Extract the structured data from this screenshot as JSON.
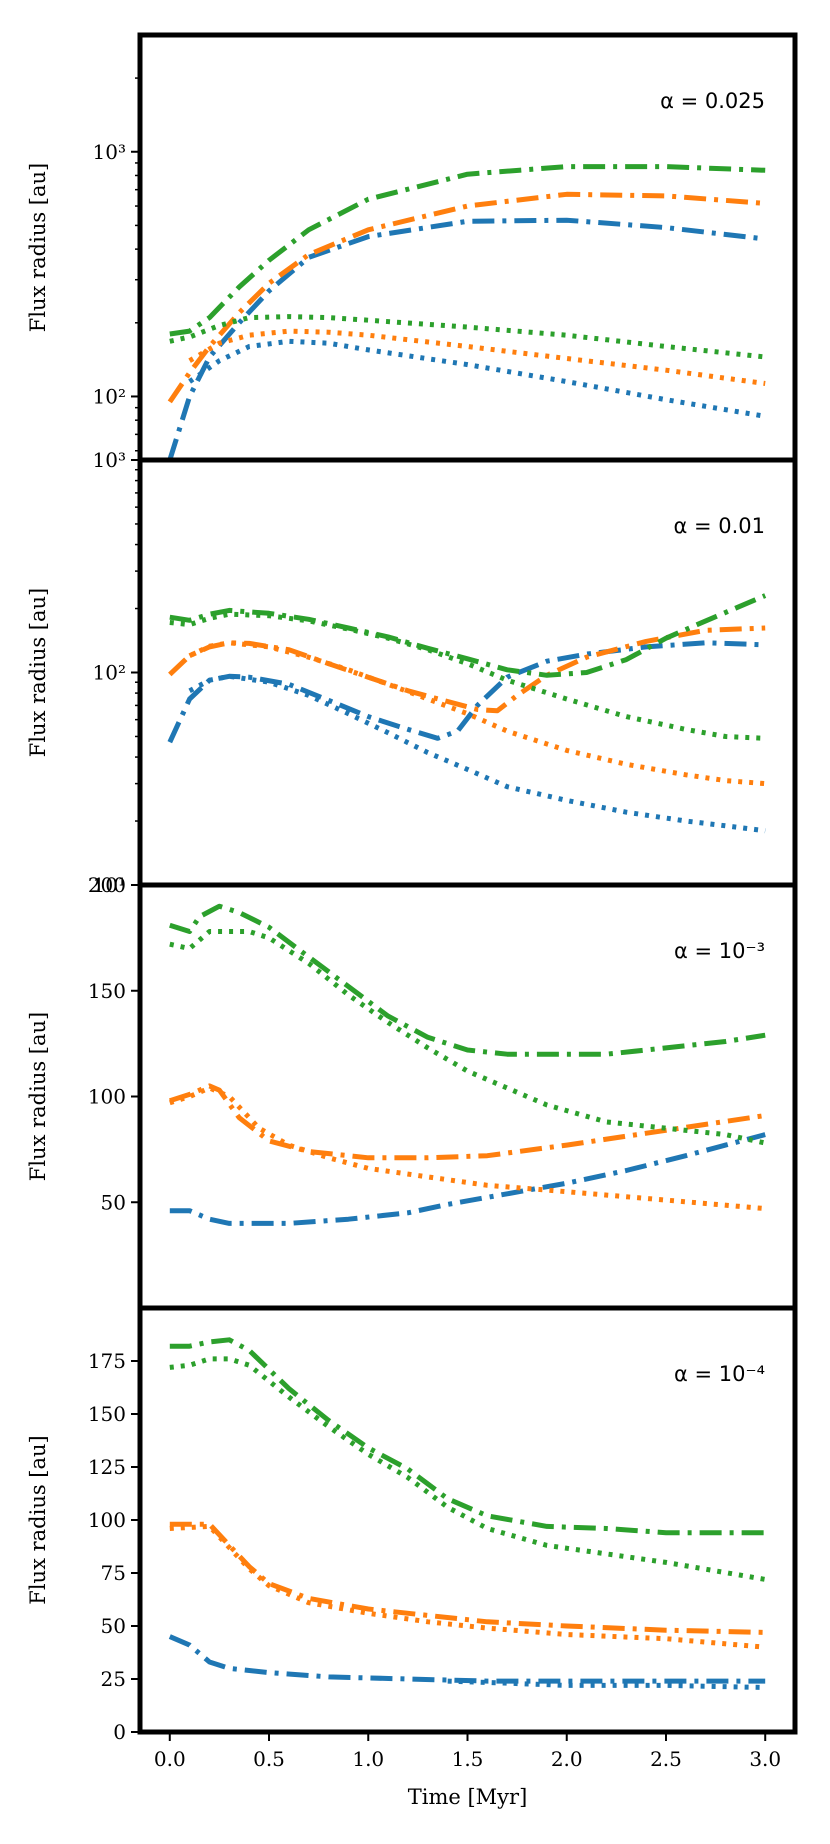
{
  "chart_data": [
    {
      "type": "line",
      "panel": "alpha_0.025",
      "annotation": "α = 0.025",
      "ylabel": "Flux radius [au]",
      "yscale": "log",
      "ylim": [
        55,
        3000
      ],
      "yticks": [
        {
          "v": 100,
          "label": "10²"
        },
        {
          "v": 1000,
          "label": "10³"
        }
      ],
      "series": [
        {
          "name": "blue-dashdot",
          "color": "#1f77b4",
          "style": "dashdot",
          "x": [
            0,
            0.1,
            0.2,
            0.35,
            0.5,
            0.7,
            1.0,
            1.5,
            2.0,
            2.5,
            3.0
          ],
          "values": [
            55,
            100,
            145,
            200,
            270,
            370,
            450,
            520,
            525,
            490,
            440
          ]
        },
        {
          "name": "blue-dotted",
          "color": "#1f77b4",
          "style": "dotted",
          "x": [
            0.1,
            0.25,
            0.4,
            0.6,
            0.8,
            1.0,
            1.5,
            2.0,
            2.5,
            3.0
          ],
          "values": [
            115,
            140,
            160,
            168,
            165,
            155,
            135,
            115,
            97,
            83
          ]
        },
        {
          "name": "orange-dashdot",
          "color": "#ff7f0e",
          "style": "dashdot",
          "x": [
            0,
            0.1,
            0.2,
            0.35,
            0.5,
            0.7,
            1.0,
            1.5,
            2.0,
            2.5,
            3.0
          ],
          "values": [
            95,
            125,
            160,
            220,
            290,
            380,
            480,
            600,
            670,
            660,
            615
          ]
        },
        {
          "name": "orange-dotted",
          "color": "#ff7f0e",
          "style": "dotted",
          "x": [
            0.1,
            0.25,
            0.4,
            0.6,
            0.8,
            1.0,
            1.5,
            2.0,
            2.5,
            3.0
          ],
          "values": [
            140,
            165,
            178,
            185,
            183,
            178,
            160,
            143,
            128,
            113
          ]
        },
        {
          "name": "green-dashdot",
          "color": "#2ca02c",
          "style": "dashdot",
          "x": [
            0,
            0.1,
            0.2,
            0.35,
            0.5,
            0.7,
            1.0,
            1.5,
            2.0,
            2.5,
            3.0
          ],
          "values": [
            180,
            185,
            210,
            280,
            360,
            480,
            640,
            810,
            870,
            870,
            840
          ]
        },
        {
          "name": "green-dotted",
          "color": "#2ca02c",
          "style": "dotted",
          "x": [
            0,
            0.1,
            0.25,
            0.4,
            0.6,
            0.8,
            1.0,
            1.5,
            2.0,
            2.5,
            3.0
          ],
          "values": [
            168,
            175,
            195,
            210,
            212,
            210,
            205,
            192,
            178,
            160,
            145
          ]
        }
      ]
    },
    {
      "type": "line",
      "panel": "alpha_0.01",
      "annotation": "α = 0.01",
      "ylabel": "Flux radius [au]",
      "yscale": "log",
      "ylim": [
        10,
        1000
      ],
      "yticks": [
        {
          "v": 10,
          "label": "10¹"
        },
        {
          "v": 100,
          "label": "10²"
        },
        {
          "v": 1000,
          "label": "10³"
        }
      ],
      "series": [
        {
          "name": "blue-dashdot",
          "color": "#1f77b4",
          "style": "dashdot",
          "x": [
            0,
            0.1,
            0.2,
            0.3,
            0.4,
            0.6,
            0.8,
            1.0,
            1.2,
            1.35,
            1.45,
            1.55,
            1.7,
            1.9,
            2.1,
            2.4,
            2.7,
            3.0
          ],
          "values": [
            47,
            75,
            92,
            96,
            95,
            88,
            74,
            62,
            54,
            49,
            53,
            70,
            95,
            113,
            122,
            132,
            138,
            135
          ]
        },
        {
          "name": "blue-dotted",
          "color": "#1f77b4",
          "style": "dotted",
          "x": [
            0.1,
            0.2,
            0.3,
            0.5,
            0.7,
            0.9,
            1.1,
            1.3,
            1.5,
            1.7,
            2.0,
            2.3,
            2.6,
            2.8,
            3.0
          ],
          "values": [
            82,
            92,
            96,
            90,
            78,
            64,
            52,
            42,
            35,
            29,
            25,
            22,
            20,
            19,
            18
          ]
        },
        {
          "name": "orange-dashdot",
          "color": "#ff7f0e",
          "style": "dashdot",
          "x": [
            0,
            0.1,
            0.2,
            0.3,
            0.4,
            0.6,
            0.8,
            1.0,
            1.2,
            1.4,
            1.55,
            1.65,
            1.75,
            1.9,
            2.1,
            2.4,
            2.7,
            3.0
          ],
          "values": [
            98,
            120,
            132,
            138,
            137,
            128,
            110,
            95,
            82,
            73,
            67,
            66,
            78,
            97,
            118,
            140,
            158,
            162
          ]
        },
        {
          "name": "orange-dotted",
          "color": "#ff7f0e",
          "style": "dotted",
          "x": [
            0.1,
            0.2,
            0.3,
            0.5,
            0.7,
            0.9,
            1.1,
            1.3,
            1.5,
            1.7,
            2.0,
            2.3,
            2.6,
            2.8,
            3.0
          ],
          "values": [
            120,
            133,
            138,
            132,
            118,
            103,
            88,
            75,
            64,
            53,
            43,
            37,
            33,
            31,
            30
          ]
        },
        {
          "name": "green-dashdot",
          "color": "#2ca02c",
          "style": "dashdot",
          "x": [
            0,
            0.1,
            0.2,
            0.3,
            0.5,
            0.7,
            0.9,
            1.1,
            1.3,
            1.5,
            1.7,
            1.9,
            2.1,
            2.3,
            2.5,
            2.7,
            3.0
          ],
          "values": [
            182,
            176,
            188,
            196,
            190,
            178,
            162,
            147,
            130,
            116,
            103,
            97,
            100,
            115,
            145,
            175,
            230
          ]
        },
        {
          "name": "green-dotted",
          "color": "#2ca02c",
          "style": "dotted",
          "x": [
            0,
            0.1,
            0.2,
            0.3,
            0.5,
            0.7,
            0.9,
            1.1,
            1.3,
            1.5,
            1.7,
            2.0,
            2.3,
            2.6,
            2.8,
            3.0
          ],
          "values": [
            172,
            168,
            180,
            188,
            185,
            175,
            160,
            145,
            128,
            110,
            92,
            75,
            62,
            54,
            50,
            49
          ]
        }
      ]
    },
    {
      "type": "line",
      "panel": "alpha_1e-3",
      "annotation": "α = 10⁻³",
      "ylabel": "Flux radius [au]",
      "yscale": "linear",
      "ylim": [
        0,
        200
      ],
      "yticks": [
        {
          "v": 50,
          "label": "50"
        },
        {
          "v": 100,
          "label": "100"
        },
        {
          "v": 150,
          "label": "150"
        },
        {
          "v": 200,
          "label": "200"
        }
      ],
      "series": [
        {
          "name": "blue-dashdot",
          "color": "#1f77b4",
          "style": "dashdot",
          "x": [
            0,
            0.1,
            0.2,
            0.3,
            0.6,
            0.9,
            1.2,
            1.4,
            1.7,
            2.0,
            2.3,
            2.6,
            2.8,
            3.0
          ],
          "values": [
            46,
            46,
            42,
            40,
            40,
            42,
            45,
            49,
            54,
            59,
            65,
            72,
            77,
            82
          ]
        },
        {
          "name": "orange-dashdot",
          "color": "#ff7f0e",
          "style": "dashdot",
          "x": [
            0,
            0.1,
            0.2,
            0.25,
            0.35,
            0.5,
            0.7,
            1.0,
            1.3,
            1.6,
            2.0,
            2.5,
            3.0
          ],
          "values": [
            98,
            101,
            105,
            103,
            90,
            79,
            74,
            71,
            71,
            72,
            77,
            84,
            91
          ]
        },
        {
          "name": "orange-dotted",
          "color": "#ff7f0e",
          "style": "dotted",
          "x": [
            0,
            0.1,
            0.2,
            0.3,
            0.45,
            0.6,
            0.8,
            1.0,
            1.3,
            1.6,
            2.0,
            2.5,
            3.0
          ],
          "values": [
            97,
            100,
            104,
            100,
            85,
            77,
            71,
            66,
            62,
            58,
            55,
            51,
            47
          ]
        },
        {
          "name": "green-dashdot",
          "color": "#2ca02c",
          "style": "dashdot",
          "x": [
            0,
            0.1,
            0.15,
            0.25,
            0.35,
            0.5,
            0.7,
            0.9,
            1.1,
            1.3,
            1.5,
            1.7,
            2.0,
            2.2,
            2.4,
            2.6,
            2.8,
            3.0
          ],
          "values": [
            181,
            178,
            185,
            190,
            187,
            180,
            166,
            152,
            138,
            128,
            122,
            120,
            120,
            120,
            122,
            124,
            126,
            129
          ]
        },
        {
          "name": "green-dotted",
          "color": "#2ca02c",
          "style": "dotted",
          "x": [
            0,
            0.1,
            0.2,
            0.3,
            0.4,
            0.5,
            0.7,
            0.9,
            1.1,
            1.3,
            1.5,
            1.7,
            1.9,
            2.2,
            2.5,
            2.8,
            3.0
          ],
          "values": [
            172,
            170,
            178,
            178,
            178,
            175,
            163,
            148,
            135,
            123,
            112,
            104,
            96,
            88,
            85,
            82,
            78
          ]
        }
      ]
    },
    {
      "type": "line",
      "panel": "alpha_1e-4",
      "annotation": "α = 10⁻⁴",
      "ylabel": "Flux radius [au]",
      "xlabel": "Time [Myr]",
      "yscale": "linear",
      "ylim": [
        0,
        200
      ],
      "xlim": [
        -0.15,
        3.15
      ],
      "xticks": [
        {
          "v": 0.0,
          "label": "0.0"
        },
        {
          "v": 0.5,
          "label": "0.5"
        },
        {
          "v": 1.0,
          "label": "1.0"
        },
        {
          "v": 1.5,
          "label": "1.5"
        },
        {
          "v": 2.0,
          "label": "2.0"
        },
        {
          "v": 2.5,
          "label": "2.5"
        },
        {
          "v": 3.0,
          "label": "3.0"
        }
      ],
      "yticks": [
        {
          "v": 0,
          "label": "0"
        },
        {
          "v": 25,
          "label": "25"
        },
        {
          "v": 50,
          "label": "50"
        },
        {
          "v": 75,
          "label": "75"
        },
        {
          "v": 100,
          "label": "100"
        },
        {
          "v": 125,
          "label": "125"
        },
        {
          "v": 150,
          "label": "150"
        },
        {
          "v": 175,
          "label": "175"
        }
      ],
      "series": [
        {
          "name": "blue-dashdot",
          "color": "#1f77b4",
          "style": "dashdot",
          "x": [
            0,
            0.1,
            0.2,
            0.3,
            0.5,
            0.8,
            1.2,
            1.6,
            2.0,
            2.5,
            3.0
          ],
          "values": [
            45,
            41,
            33,
            30,
            28,
            26,
            25,
            24,
            24,
            24,
            24
          ]
        },
        {
          "name": "blue-dotted",
          "color": "#1f77b4",
          "style": "dotted",
          "x": [
            1.4,
            1.7,
            2.0,
            2.5,
            3.0
          ],
          "values": [
            24,
            23,
            22,
            22,
            21
          ]
        },
        {
          "name": "orange-dashdot",
          "color": "#ff7f0e",
          "style": "dashdot",
          "x": [
            0,
            0.2,
            0.3,
            0.4,
            0.5,
            0.7,
            1.0,
            1.3,
            1.6,
            2.0,
            2.5,
            3.0
          ],
          "values": [
            98,
            98,
            88,
            78,
            70,
            63,
            58,
            55,
            52,
            50,
            48,
            47
          ]
        },
        {
          "name": "orange-dotted",
          "color": "#ff7f0e",
          "style": "dotted",
          "x": [
            0,
            0.2,
            0.3,
            0.4,
            0.5,
            0.7,
            1.0,
            1.3,
            1.6,
            2.0,
            2.5,
            3.0
          ],
          "values": [
            96,
            97,
            87,
            77,
            69,
            61,
            56,
            52,
            49,
            46,
            44,
            40
          ]
        },
        {
          "name": "green-dashdot",
          "color": "#2ca02c",
          "style": "dashdot",
          "x": [
            0,
            0.1,
            0.2,
            0.3,
            0.4,
            0.6,
            0.8,
            1.0,
            1.2,
            1.4,
            1.6,
            1.9,
            2.2,
            2.5,
            3.0
          ],
          "values": [
            182,
            182,
            184,
            185,
            180,
            162,
            147,
            134,
            124,
            110,
            102,
            97,
            96,
            94,
            94
          ]
        },
        {
          "name": "green-dotted",
          "color": "#2ca02c",
          "style": "dotted",
          "x": [
            0,
            0.1,
            0.2,
            0.3,
            0.4,
            0.6,
            0.8,
            1.0,
            1.2,
            1.4,
            1.6,
            1.9,
            2.2,
            2.5,
            3.0
          ],
          "values": [
            172,
            173,
            176,
            176,
            173,
            158,
            144,
            131,
            120,
            106,
            96,
            88,
            84,
            80,
            72
          ]
        }
      ]
    }
  ]
}
